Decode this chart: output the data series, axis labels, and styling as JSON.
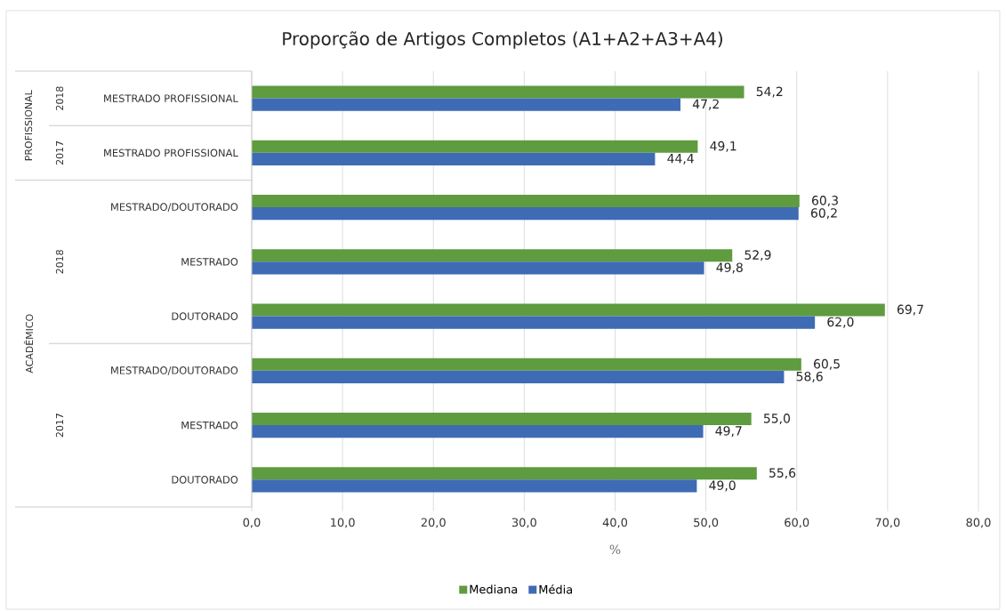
{
  "chart_data": {
    "type": "bar",
    "orientation": "horizontal",
    "title": "Proporção de Artigos Completos (A1+A2+A3+A4)",
    "xlabel": "%",
    "categories": [
      "MESTRADO PROFISSIONAL",
      "MESTRADO PROFISSIONAL",
      "MESTRADO/DOUTORADO",
      "MESTRADO",
      "DOUTORADO",
      "MESTRADO/DOUTORADO",
      "MESTRADO",
      "DOUTORADO"
    ],
    "series": [
      {
        "name": "Mediana",
        "color": "#5f9b3f",
        "values": [
          54.2,
          49.1,
          60.3,
          52.9,
          69.7,
          60.5,
          55.0,
          55.6
        ],
        "value_labels": [
          "54,2",
          "49,1",
          "60,3",
          "52,9",
          "69,7",
          "60,5",
          "55,0",
          "55,6"
        ]
      },
      {
        "name": "Média",
        "color": "#3f6bb5",
        "values": [
          47.2,
          44.4,
          60.2,
          49.8,
          62.0,
          58.6,
          49.7,
          49.0
        ],
        "value_labels": [
          "47,2",
          "44,4",
          "60,2",
          "49,8",
          "62,0",
          "58,6",
          "49,7",
          "49,0"
        ]
      }
    ],
    "xlim": [
      0,
      80
    ],
    "xticks": [
      {
        "value": 0,
        "label": "0,0"
      },
      {
        "value": 10,
        "label": "10,0"
      },
      {
        "value": 20,
        "label": "20,0"
      },
      {
        "value": 30,
        "label": "30,0"
      },
      {
        "value": 40,
        "label": "40,0"
      },
      {
        "value": 50,
        "label": "50,0"
      },
      {
        "value": 60,
        "label": "60,0"
      },
      {
        "value": 70,
        "label": "70,0"
      },
      {
        "value": 80,
        "label": "80,0"
      }
    ],
    "grid": "x",
    "legend": "bottom",
    "annotations": [
      "PROFISSIONAL",
      "2018",
      "2017",
      "ACADÊMICO",
      "2018",
      "2017"
    ]
  }
}
